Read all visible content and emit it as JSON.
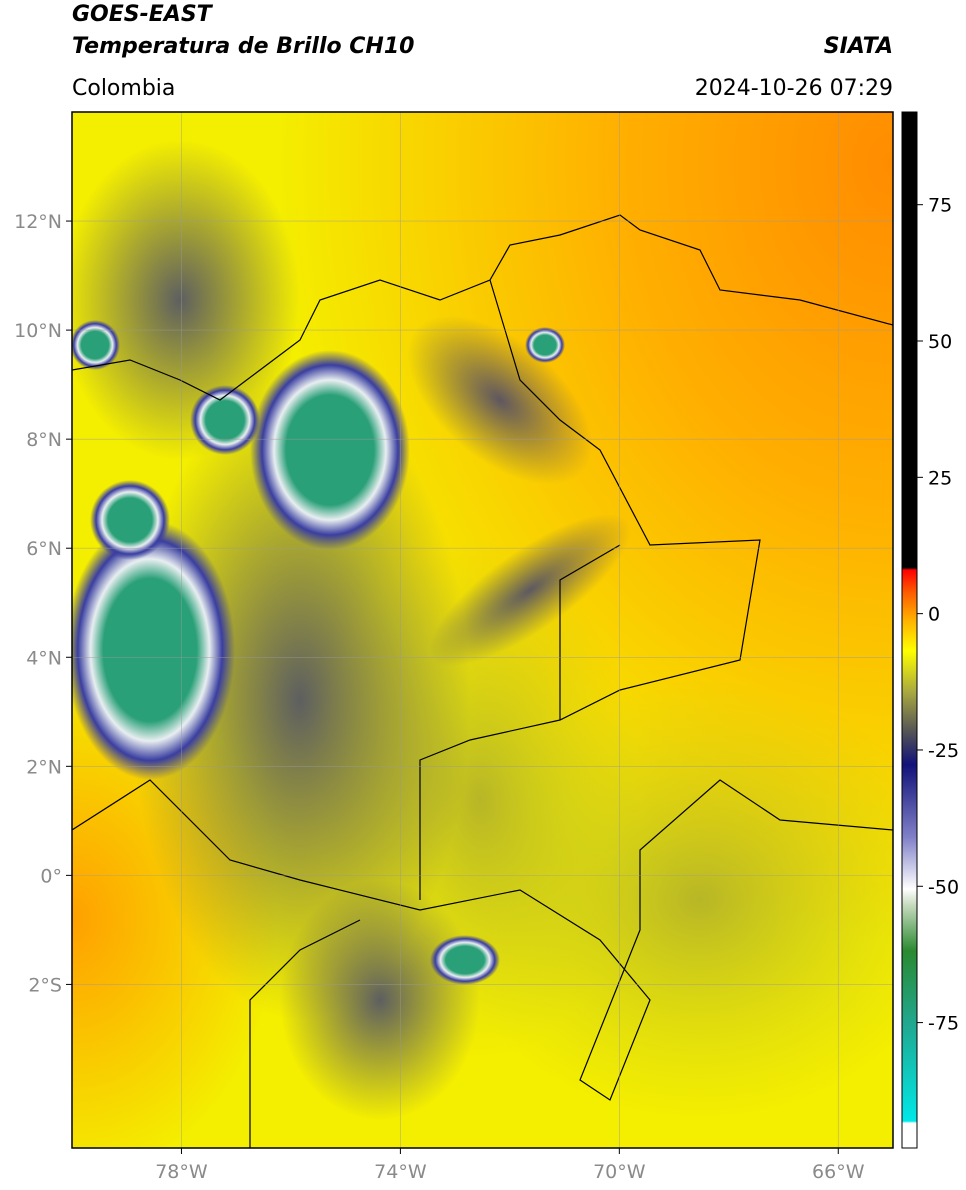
{
  "header": {
    "title": "GOES-EAST",
    "subtitle": "Temperatura de Brillo CH10",
    "source": "SIATA",
    "region": "Colombia",
    "timestamp": "2024-10-26 07:29"
  },
  "map": {
    "lonlim": [
      -80,
      -65
    ],
    "latlim": [
      -5,
      14
    ],
    "lon_ticks": [
      {
        "value": -78,
        "label": "78°W"
      },
      {
        "value": -74,
        "label": "74°W"
      },
      {
        "value": -70,
        "label": "70°W"
      },
      {
        "value": -66,
        "label": "66°W"
      }
    ],
    "lat_ticks": [
      {
        "value": 12,
        "label": "12°N"
      },
      {
        "value": 10,
        "label": "10°N"
      },
      {
        "value": 8,
        "label": "8°N"
      },
      {
        "value": 6,
        "label": "6°N"
      },
      {
        "value": 4,
        "label": "4°N"
      },
      {
        "value": 2,
        "label": "2°N"
      },
      {
        "value": 0,
        "label": "0°"
      },
      {
        "value": -2,
        "label": "2°S"
      }
    ]
  },
  "colorbar": {
    "lim": [
      -98,
      92
    ],
    "ticks": [
      75,
      50,
      25,
      0,
      -25,
      -50,
      -75
    ]
  }
}
